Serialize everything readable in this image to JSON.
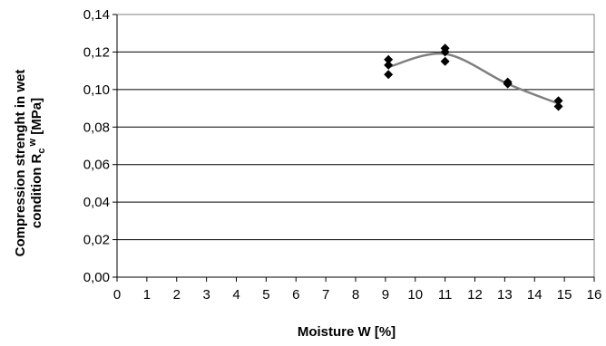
{
  "chart_data": {
    "type": "scatter",
    "xlabel": "Moisture W [%]",
    "ylabel": {
      "line1": "Compression strenght in wet",
      "line2_prefix": "condition R",
      "line2_sub": "c",
      "line2_sup": "w",
      "line2_suffix": " [MPa]"
    },
    "xlim": [
      0,
      16
    ],
    "ylim": [
      0,
      0.14
    ],
    "x_ticks": [
      0,
      1,
      2,
      3,
      4,
      5,
      6,
      7,
      8,
      9,
      10,
      11,
      12,
      13,
      14,
      15,
      16
    ],
    "y_ticks": [
      {
        "value": 0.0,
        "label": "0,00"
      },
      {
        "value": 0.02,
        "label": "0,02"
      },
      {
        "value": 0.04,
        "label": "0,04"
      },
      {
        "value": 0.06,
        "label": "0,06"
      },
      {
        "value": 0.08,
        "label": "0,08"
      },
      {
        "value": 0.1,
        "label": "0,10"
      },
      {
        "value": 0.12,
        "label": "0,12"
      },
      {
        "value": 0.14,
        "label": "0,14"
      }
    ],
    "grid": {
      "horizontal": true,
      "vertical": false
    },
    "series": [
      {
        "marker": "diamond",
        "points": [
          {
            "x": 9.1,
            "y": 0.116
          },
          {
            "x": 9.1,
            "y": 0.113
          },
          {
            "x": 9.1,
            "y": 0.108
          },
          {
            "x": 11.0,
            "y": 0.122
          },
          {
            "x": 11.0,
            "y": 0.12
          },
          {
            "x": 11.0,
            "y": 0.115
          },
          {
            "x": 13.1,
            "y": 0.104
          },
          {
            "x": 13.1,
            "y": 0.103
          },
          {
            "x": 14.8,
            "y": 0.094
          },
          {
            "x": 14.8,
            "y": 0.091
          }
        ]
      }
    ],
    "trend": {
      "type": "smooth",
      "points": [
        {
          "x": 9.1,
          "y": 0.112
        },
        {
          "x": 11.0,
          "y": 0.119
        },
        {
          "x": 13.1,
          "y": 0.103
        },
        {
          "x": 14.8,
          "y": 0.0925
        }
      ]
    },
    "colors": {
      "marker": "#000000",
      "trend": "#808080",
      "grid": "#000000"
    }
  }
}
